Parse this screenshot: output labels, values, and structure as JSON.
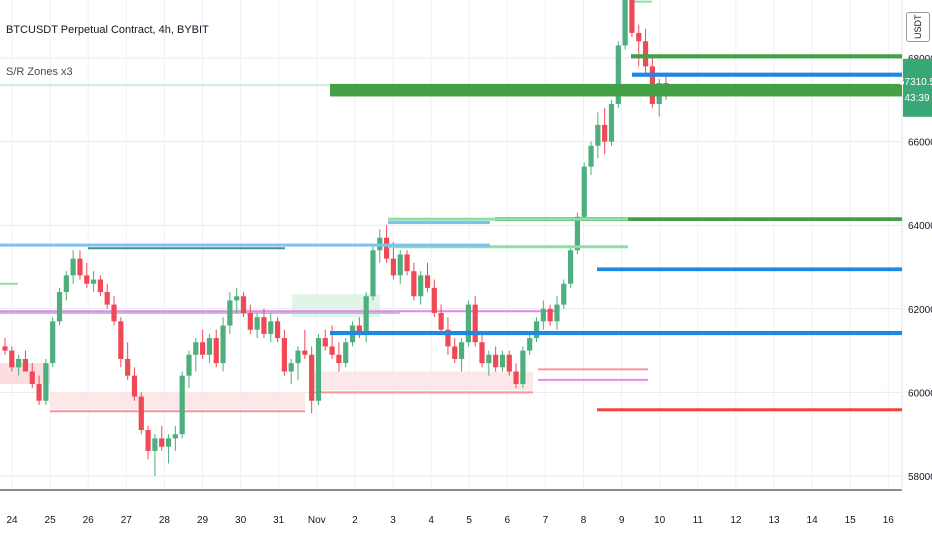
{
  "title": "BTCUSDT Perpetual Contract, 4h, BYBIT",
  "indicator": "S/R Zones x3",
  "unit": "USDT",
  "colors": {
    "up": "#4caf7d",
    "down": "#ef4956",
    "green_line": "#43a047",
    "blue_line": "#1e88e5",
    "light_blue": "#7fc0f5",
    "light_green": "#8de0a8",
    "red_line": "#f44336",
    "pink_line": "#ee82ee",
    "last_price_bg": "#3aa876"
  },
  "chart_data": {
    "type": "candlestick",
    "title": "BTCUSDT Perpetual Contract, 4h, BYBIT",
    "x_tick_labels": [
      "24",
      "25",
      "26",
      "27",
      "28",
      "29",
      "30",
      "31",
      "Nov",
      "2",
      "3",
      "4",
      "5",
      "6",
      "7",
      "8",
      "9",
      "10",
      "11",
      "12",
      "13",
      "14",
      "15",
      "16"
    ],
    "y_tick_labels": [
      "58000.0",
      "60000.0",
      "62000.0",
      "64000.0",
      "66000.0",
      "68000.0"
    ],
    "ylim": [
      57500,
      69800
    ],
    "last_price": "67310.5",
    "last_price_countdown": "43:39",
    "candles": [
      [
        61100,
        61300,
        60900,
        61000
      ],
      [
        61000,
        61100,
        60500,
        60600
      ],
      [
        60600,
        60900,
        60400,
        60800
      ],
      [
        60800,
        61000,
        60500,
        60500
      ],
      [
        60500,
        60700,
        60100,
        60200
      ],
      [
        60200,
        60400,
        59700,
        59800
      ],
      [
        59800,
        60800,
        59700,
        60700
      ],
      [
        60700,
        61800,
        60600,
        61700
      ],
      [
        61700,
        62500,
        61600,
        62400
      ],
      [
        62400,
        62900,
        62200,
        62800
      ],
      [
        62800,
        63400,
        62600,
        63200
      ],
      [
        63200,
        63400,
        62700,
        62800
      ],
      [
        62800,
        63100,
        62500,
        62600
      ],
      [
        62600,
        62900,
        62400,
        62700
      ],
      [
        62700,
        62800,
        62300,
        62400
      ],
      [
        62400,
        62600,
        62000,
        62100
      ],
      [
        62100,
        62300,
        61600,
        61700
      ],
      [
        61700,
        61800,
        60600,
        60800
      ],
      [
        60800,
        61200,
        60300,
        60400
      ],
      [
        60400,
        60600,
        59800,
        59900
      ],
      [
        59900,
        60000,
        59000,
        59100
      ],
      [
        59100,
        59200,
        58400,
        58600
      ],
      [
        58600,
        59000,
        58000,
        58900
      ],
      [
        58900,
        59200,
        58600,
        58700
      ],
      [
        58700,
        59000,
        58300,
        58900
      ],
      [
        58900,
        59200,
        58600,
        59000
      ],
      [
        59000,
        60500,
        58900,
        60400
      ],
      [
        60400,
        61000,
        60100,
        60900
      ],
      [
        60900,
        61300,
        60500,
        61200
      ],
      [
        61200,
        61500,
        60800,
        60900
      ],
      [
        60900,
        61400,
        60700,
        61300
      ],
      [
        61300,
        61500,
        60600,
        60700
      ],
      [
        60700,
        61800,
        60500,
        61600
      ],
      [
        61600,
        62400,
        61400,
        62200
      ],
      [
        62200,
        62500,
        61900,
        62300
      ],
      [
        62300,
        62400,
        61800,
        61900
      ],
      [
        61900,
        62100,
        61400,
        61500
      ],
      [
        61500,
        61900,
        61300,
        61800
      ],
      [
        61800,
        62000,
        61300,
        61400
      ],
      [
        61400,
        61900,
        61200,
        61700
      ],
      [
        61700,
        61800,
        61200,
        61300
      ],
      [
        61300,
        61500,
        60400,
        60500
      ],
      [
        60500,
        60800,
        60200,
        60700
      ],
      [
        60700,
        61100,
        60300,
        61000
      ],
      [
        61000,
        61500,
        60800,
        60900
      ],
      [
        60900,
        61100,
        59500,
        59800
      ],
      [
        59800,
        61400,
        59700,
        61300
      ],
      [
        61300,
        61500,
        61000,
        61100
      ],
      [
        61100,
        61600,
        60800,
        60900
      ],
      [
        60900,
        61200,
        60500,
        60700
      ],
      [
        60700,
        61300,
        60600,
        61200
      ],
      [
        61200,
        61700,
        61100,
        61600
      ],
      [
        61600,
        61800,
        61300,
        61400
      ],
      [
        61400,
        62400,
        61200,
        62300
      ],
      [
        62300,
        63500,
        62200,
        63400
      ],
      [
        63400,
        63900,
        63100,
        63700
      ],
      [
        63700,
        64000,
        63100,
        63200
      ],
      [
        63200,
        63600,
        62700,
        62800
      ],
      [
        62800,
        63400,
        62600,
        63300
      ],
      [
        63300,
        63400,
        62800,
        62900
      ],
      [
        62900,
        63100,
        62200,
        62300
      ],
      [
        62300,
        62900,
        62100,
        62800
      ],
      [
        62800,
        63100,
        62400,
        62500
      ],
      [
        62500,
        62700,
        61800,
        61900
      ],
      [
        61900,
        62100,
        61400,
        61500
      ],
      [
        61500,
        61800,
        60900,
        61100
      ],
      [
        61100,
        61300,
        60700,
        60800
      ],
      [
        60800,
        61300,
        60500,
        61200
      ],
      [
        61200,
        62200,
        61100,
        62100
      ],
      [
        62100,
        62300,
        61100,
        61200
      ],
      [
        61200,
        61400,
        60600,
        60700
      ],
      [
        60700,
        61000,
        60400,
        60900
      ],
      [
        60900,
        61100,
        60500,
        60600
      ],
      [
        60600,
        61000,
        60500,
        60900
      ],
      [
        60900,
        61000,
        60400,
        60500
      ],
      [
        60500,
        60700,
        60100,
        60200
      ],
      [
        60200,
        61100,
        60100,
        61000
      ],
      [
        61000,
        61400,
        60900,
        61300
      ],
      [
        61300,
        61800,
        61200,
        61700
      ],
      [
        61700,
        62200,
        61500,
        62000
      ],
      [
        62000,
        62100,
        61600,
        61700
      ],
      [
        61700,
        62300,
        61500,
        62100
      ],
      [
        62100,
        62700,
        62000,
        62600
      ],
      [
        62600,
        63500,
        62500,
        63400
      ],
      [
        63400,
        64300,
        63300,
        64200
      ],
      [
        64200,
        65500,
        64100,
        65400
      ],
      [
        65400,
        66000,
        65200,
        65900
      ],
      [
        65900,
        66700,
        65600,
        66400
      ],
      [
        66400,
        66800,
        65700,
        66000
      ],
      [
        66000,
        67000,
        65900,
        66900
      ],
      [
        66900,
        68400,
        66800,
        68300
      ],
      [
        68300,
        69500,
        68200,
        69400
      ],
      [
        69400,
        69500,
        68500,
        68600
      ],
      [
        68600,
        68800,
        67800,
        68400
      ],
      [
        68400,
        68700,
        67600,
        67800
      ],
      [
        67800,
        68000,
        66800,
        66900
      ],
      [
        66900,
        67500,
        66600,
        67400
      ],
      [
        67400,
        67600,
        67000,
        67310
      ]
    ],
    "zones": [
      {
        "color": "#43a047",
        "y0": 68090,
        "y1": 67990,
        "x0": 631,
        "x1": 902
      },
      {
        "color": "#43a047",
        "y0": 67380,
        "y1": 67080,
        "x0": 330,
        "x1": 902
      },
      {
        "color": "#1e88e5",
        "y0": 67650,
        "y1": 67550,
        "x0": 632,
        "x1": 902
      },
      {
        "color": "#43a047",
        "y0": 64190,
        "y1": 64100,
        "x0": 495,
        "x1": 902
      },
      {
        "color": "#7fc0f5",
        "y0": 64100,
        "y1": 64050,
        "x0": 388,
        "x1": 490
      },
      {
        "color": "#8de0a8",
        "y0": 64180,
        "y1": 64150,
        "x0": 388,
        "x1": 628
      },
      {
        "color": "#8de0a8",
        "y0": 63520,
        "y1": 63480,
        "x0": 388,
        "x1": 628
      },
      {
        "color": "#7fc0f5",
        "y0": 63560,
        "y1": 63500,
        "x0": 0,
        "x1": 490
      },
      {
        "color": "#1e88e5",
        "y0": 62990,
        "y1": 62900,
        "x0": 597,
        "x1": 902
      },
      {
        "color": "#1e88e5",
        "y0": 61470,
        "y1": 61370,
        "x0": 330,
        "x1": 902
      },
      {
        "color": "#f44336",
        "y0": 59620,
        "y1": 59570,
        "x0": 597,
        "x1": 902
      }
    ]
  }
}
